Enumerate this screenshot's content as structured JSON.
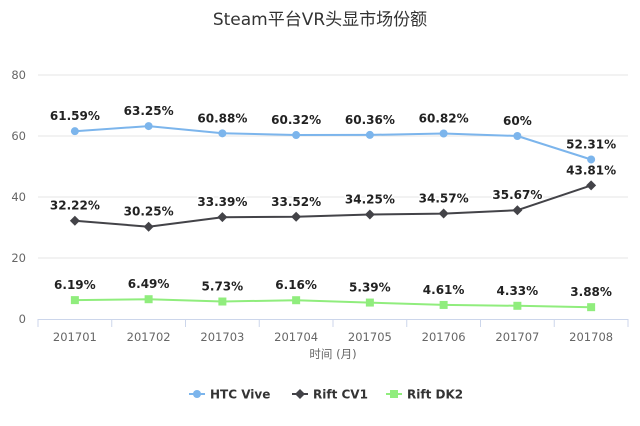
{
  "chart_data": {
    "type": "line",
    "title": "Steam平台VR头显市场份额",
    "xlabel": "时间 (月)",
    "ylabel": "",
    "categories": [
      "201701",
      "201702",
      "201703",
      "201704",
      "201705",
      "201706",
      "201707",
      "201708"
    ],
    "ylim": [
      0,
      80
    ],
    "yticks": [
      0,
      20,
      40,
      60,
      80
    ],
    "grid": true,
    "legend_position": "bottom-center",
    "series": [
      {
        "name": "HTC Vive",
        "color": "#7cb5ec",
        "marker": "circle",
        "values": [
          61.59,
          63.25,
          60.88,
          60.32,
          60.36,
          60.82,
          60,
          52.31
        ],
        "labels": [
          "61.59%",
          "63.25%",
          "60.88%",
          "60.32%",
          "60.36%",
          "60.82%",
          "60%",
          "52.31%"
        ]
      },
      {
        "name": "Rift CV1",
        "color": "#434348",
        "marker": "diamond",
        "values": [
          32.22,
          30.25,
          33.39,
          33.52,
          34.25,
          34.57,
          35.67,
          43.81
        ],
        "labels": [
          "32.22%",
          "30.25%",
          "33.39%",
          "33.52%",
          "34.25%",
          "34.57%",
          "35.67%",
          "43.81%"
        ]
      },
      {
        "name": "Rift DK2",
        "color": "#90ed7d",
        "marker": "square",
        "values": [
          6.19,
          6.49,
          5.73,
          6.16,
          5.39,
          4.61,
          4.33,
          3.88
        ],
        "labels": [
          "6.19%",
          "6.49%",
          "5.73%",
          "6.16%",
          "5.39%",
          "4.61%",
          "4.33%",
          "3.88%"
        ]
      }
    ]
  }
}
